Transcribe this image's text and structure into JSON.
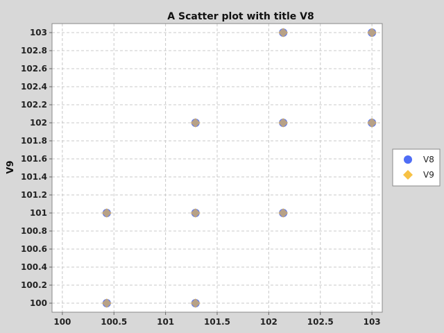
{
  "chart_data": {
    "type": "scatter",
    "title": "A Scatter plot with title V8",
    "xlabel": "",
    "ylabel": "V9",
    "xlim": [
      99.9,
      103.1
    ],
    "ylim": [
      99.9,
      103.1
    ],
    "grid": true,
    "legend_placement": "right",
    "x_ticks": [
      "100",
      "100.5",
      "101",
      "101.5",
      "102",
      "102.5",
      "103"
    ],
    "y_ticks": [
      "100",
      "100.2",
      "100.4",
      "100.6",
      "100.8",
      "101",
      "101.2",
      "101.4",
      "101.6",
      "101.8",
      "102",
      "102.2",
      "102.4",
      "102.6",
      "102.8",
      "103"
    ],
    "series": [
      {
        "name": "V8",
        "marker": "circle",
        "color": "#4f6df5",
        "points": [
          [
            100.43,
            100
          ],
          [
            101.29,
            100
          ],
          [
            100.43,
            101
          ],
          [
            101.29,
            101
          ],
          [
            102.14,
            101
          ],
          [
            101.29,
            102
          ],
          [
            102.14,
            102
          ],
          [
            103,
            102
          ],
          [
            102.14,
            103
          ],
          [
            103,
            103
          ]
        ]
      },
      {
        "name": "V9",
        "marker": "diamond",
        "color": "#f7c144",
        "points": [
          [
            100.43,
            100
          ],
          [
            101.29,
            100
          ],
          [
            100.43,
            101
          ],
          [
            101.29,
            101
          ],
          [
            102.14,
            101
          ],
          [
            101.29,
            102
          ],
          [
            102.14,
            102
          ],
          [
            103,
            102
          ],
          [
            102.14,
            103
          ],
          [
            103,
            103
          ]
        ]
      }
    ]
  }
}
